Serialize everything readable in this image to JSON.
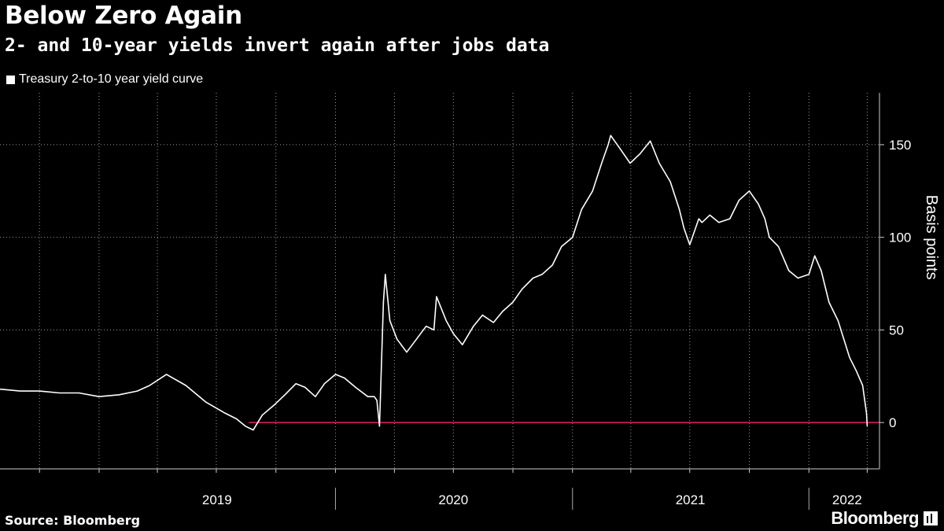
{
  "header": {
    "title": "Below Zero Again",
    "subtitle": "2- and 10-year yields invert again after jobs data"
  },
  "footer": {
    "source": "Source: Bloomberg",
    "brand": "Bloomberg"
  },
  "colors": {
    "background": "#000000",
    "series": "#ffffff",
    "zero_line": "#e0245e",
    "grid": "#9a9a9a"
  },
  "chart_data": {
    "type": "line",
    "title": "Below Zero Again",
    "subtitle": "2- and 10-year yields invert again after jobs data",
    "ylabel": "Basis points",
    "xlabel": "",
    "ylim": [
      -25,
      178
    ],
    "yticks": [
      0,
      50,
      100,
      150
    ],
    "xlim": [
      "2018-08-01",
      "2022-04-20"
    ],
    "x_tick_labels": [
      "2019",
      "2020",
      "2021",
      "2022"
    ],
    "x_tick_label_dates": [
      "2019-07-02",
      "2020-07-01",
      "2021-07-02",
      "2022-03-01"
    ],
    "x_year_dividers": [
      "2020-01-01",
      "2021-01-01",
      "2022-01-01"
    ],
    "grid": true,
    "legend_placement": "top-left",
    "reference_line": {
      "y": 0,
      "color": "#e0245e"
    },
    "series": [
      {
        "name": "Treasury 2-to-10 year yield curve",
        "x": [
          "2018-08-01",
          "2018-09-01",
          "2018-10-01",
          "2018-11-01",
          "2018-12-01",
          "2019-01-01",
          "2019-02-01",
          "2019-03-01",
          "2019-03-20",
          "2019-04-15",
          "2019-05-15",
          "2019-06-15",
          "2019-07-15",
          "2019-08-01",
          "2019-08-15",
          "2019-08-27",
          "2019-09-10",
          "2019-09-30",
          "2019-10-15",
          "2019-11-01",
          "2019-11-15",
          "2019-12-01",
          "2019-12-15",
          "2020-01-01",
          "2020-01-15",
          "2020-02-01",
          "2020-02-20",
          "2020-03-01",
          "2020-03-05",
          "2020-03-09",
          "2020-03-15",
          "2020-03-18",
          "2020-03-25",
          "2020-04-05",
          "2020-04-20",
          "2020-05-05",
          "2020-05-20",
          "2020-06-01",
          "2020-06-05",
          "2020-06-20",
          "2020-07-01",
          "2020-07-15",
          "2020-08-01",
          "2020-08-15",
          "2020-09-01",
          "2020-09-15",
          "2020-10-01",
          "2020-10-15",
          "2020-11-01",
          "2020-11-15",
          "2020-12-01",
          "2020-12-15",
          "2021-01-01",
          "2021-01-15",
          "2021-02-01",
          "2021-02-15",
          "2021-02-25",
          "2021-03-01",
          "2021-03-15",
          "2021-03-31",
          "2021-04-15",
          "2021-05-01",
          "2021-05-15",
          "2021-06-01",
          "2021-06-15",
          "2021-06-22",
          "2021-07-01",
          "2021-07-15",
          "2021-07-20",
          "2021-08-01",
          "2021-08-15",
          "2021-09-01",
          "2021-09-15",
          "2021-10-01",
          "2021-10-15",
          "2021-10-25",
          "2021-11-01",
          "2021-11-15",
          "2021-12-01",
          "2021-12-15",
          "2022-01-01",
          "2022-01-10",
          "2022-01-20",
          "2022-02-01",
          "2022-02-15",
          "2022-02-24",
          "2022-03-05",
          "2022-03-15",
          "2022-03-25",
          "2022-03-31",
          "2022-04-01"
        ],
        "values": [
          18,
          17,
          17,
          16,
          16,
          14,
          15,
          17,
          20,
          26,
          20,
          11,
          5,
          2,
          -2,
          -4,
          4,
          10,
          15,
          21,
          19,
          14,
          21,
          26,
          24,
          19,
          14,
          14,
          12,
          -2,
          65,
          80,
          55,
          45,
          38,
          45,
          52,
          50,
          68,
          55,
          48,
          42,
          52,
          58,
          54,
          60,
          65,
          72,
          78,
          80,
          85,
          95,
          100,
          115,
          125,
          140,
          150,
          155,
          148,
          140,
          145,
          152,
          140,
          130,
          115,
          105,
          96,
          110,
          108,
          112,
          108,
          110,
          120,
          125,
          118,
          110,
          100,
          95,
          82,
          78,
          80,
          90,
          82,
          65,
          55,
          45,
          35,
          28,
          20,
          5,
          -2
        ]
      }
    ]
  }
}
